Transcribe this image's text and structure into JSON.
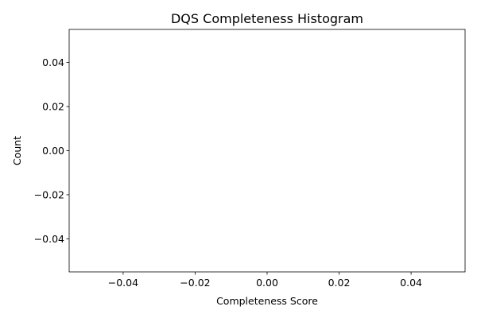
{
  "chart_data": {
    "type": "bar",
    "title": "DQS Completeness Histogram",
    "xlabel": "Completeness Score",
    "ylabel": "Count",
    "xlim": [
      -0.055,
      0.055
    ],
    "ylim": [
      -0.055,
      0.055
    ],
    "x_ticks": [
      "−0.04",
      "−0.02",
      "0.00",
      "0.02",
      "0.04"
    ],
    "y_ticks": [
      "−0.04",
      "−0.02",
      "0.00",
      "0.02",
      "0.04"
    ],
    "x_tick_values": [
      -0.04,
      -0.02,
      0.0,
      0.02,
      0.04
    ],
    "y_tick_values": [
      -0.04,
      -0.02,
      0.0,
      0.02,
      0.04
    ],
    "categories": [],
    "values": [],
    "grid": false,
    "legend": "none"
  }
}
